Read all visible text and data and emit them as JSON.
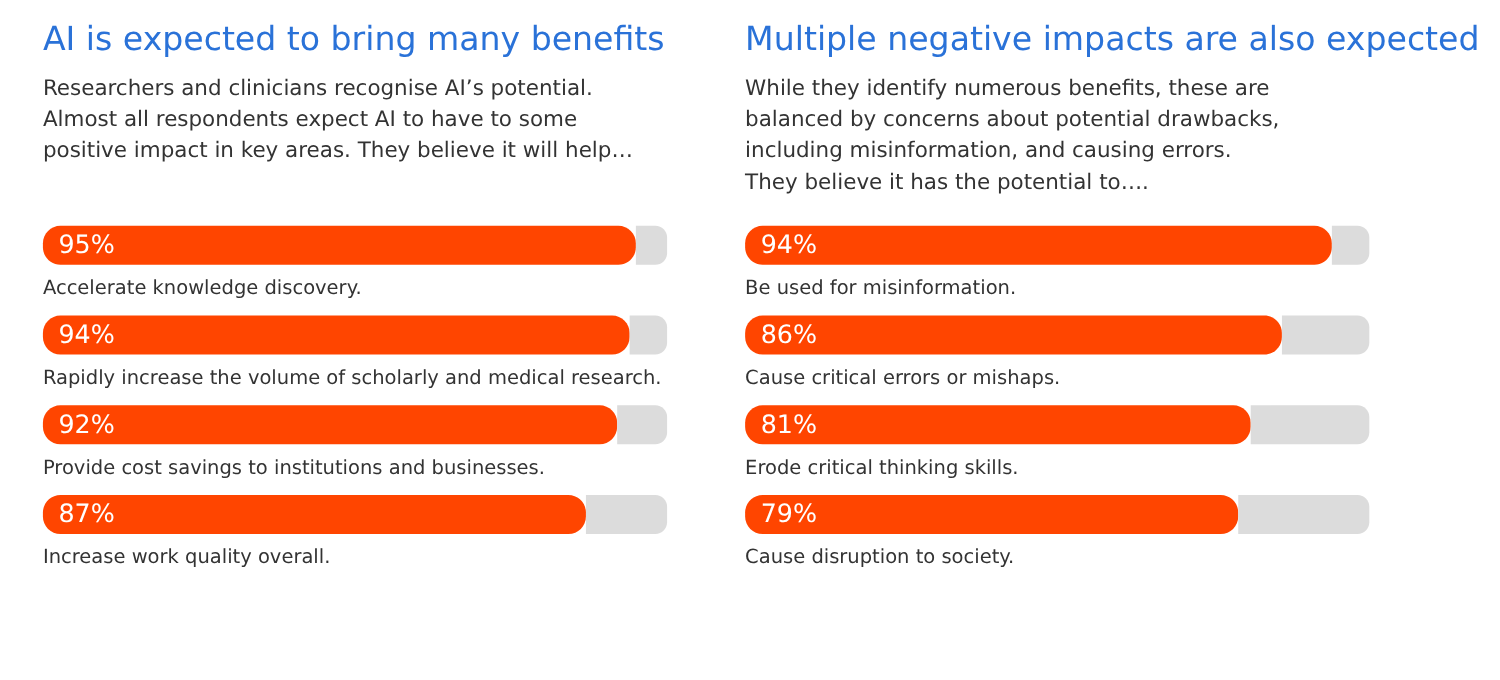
{
  "chart_data": [
    {
      "type": "bar",
      "orientation": "horizontal",
      "stacked": true,
      "title": "AI is expected to bring many benefits",
      "subtitle": "Researchers and clinicians recognise AI’s potential.\nAlmost all respondents expect AI to have to some\npositive impact in key areas. They believe it will help…",
      "categories": [
        "Accelerate knowledge discovery.",
        "Rapidly increase the volume of scholarly and medical research.",
        "Provide cost savings to institutions and businesses.",
        "Increase work quality overall."
      ],
      "series": [
        {
          "color": "#ff4500",
          "values": [
            95,
            94,
            92,
            87
          ],
          "value_labels": [
            "95%",
            "94%",
            "92%",
            "87%"
          ]
        },
        {
          "color": "#dcdcdc",
          "values": [
            5,
            6,
            8,
            13
          ]
        }
      ],
      "xlim": [
        0,
        100
      ],
      "tick_labels": false,
      "legend": false,
      "grid": false
    },
    {
      "type": "bar",
      "orientation": "horizontal",
      "stacked": true,
      "title": "Multiple negative impacts are also expected",
      "subtitle": "While they identify numerous benefits, these are\nbalanced by concerns about potential drawbacks,\nincluding misinformation, and causing errors.\nThey believe it has the potential to….",
      "categories": [
        "Be used for misinformation.",
        "Cause critical errors or mishaps.",
        "Erode critical thinking skills.",
        "Cause disruption to society."
      ],
      "series": [
        {
          "color": "#ff4500",
          "values": [
            94,
            86,
            81,
            79
          ],
          "value_labels": [
            "94%",
            "86%",
            "81%",
            "79%"
          ]
        },
        {
          "color": "#dcdcdc",
          "values": [
            6,
            14,
            19,
            21
          ]
        }
      ],
      "xlim": [
        0,
        100
      ],
      "tick_labels": false,
      "legend": false,
      "grid": false
    }
  ]
}
